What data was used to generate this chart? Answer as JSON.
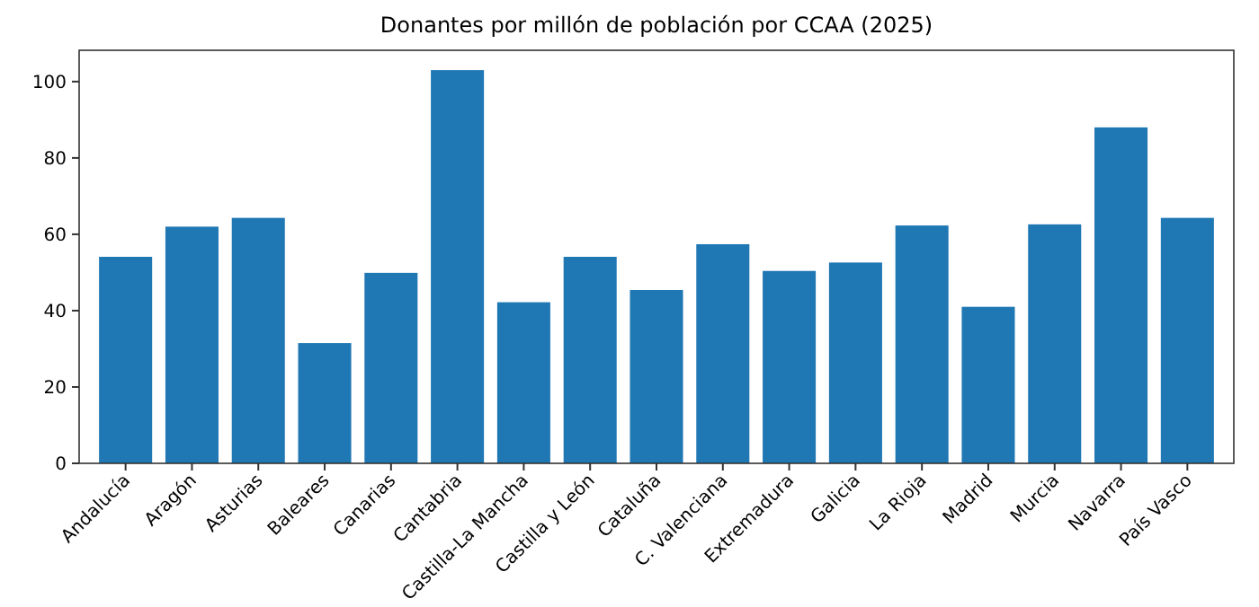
{
  "chart_data": {
    "type": "bar",
    "title": "Donantes por millón de población por CCAA (2025)",
    "categories": [
      "Andalucía",
      "Aragón",
      "Asturias",
      "Baleares",
      "Canarias",
      "Cantabria",
      "Castilla-La Mancha",
      "Castilla y León",
      "Cataluña",
      "C. Valenciana",
      "Extremadura",
      "Galicia",
      "La Rioja",
      "Madrid",
      "Murcia",
      "Navarra",
      "País Vasco"
    ],
    "values": [
      54.1,
      62,
      64.3,
      31.5,
      49.9,
      103,
      42.2,
      54.1,
      45.4,
      57.4,
      50.4,
      52.6,
      62.3,
      41,
      62.6,
      88,
      64.3
    ],
    "color": "#1f77b4",
    "ylim": [
      0,
      108.2
    ],
    "yticks": [
      0,
      20,
      40,
      60,
      80,
      100
    ],
    "grid": false
  }
}
